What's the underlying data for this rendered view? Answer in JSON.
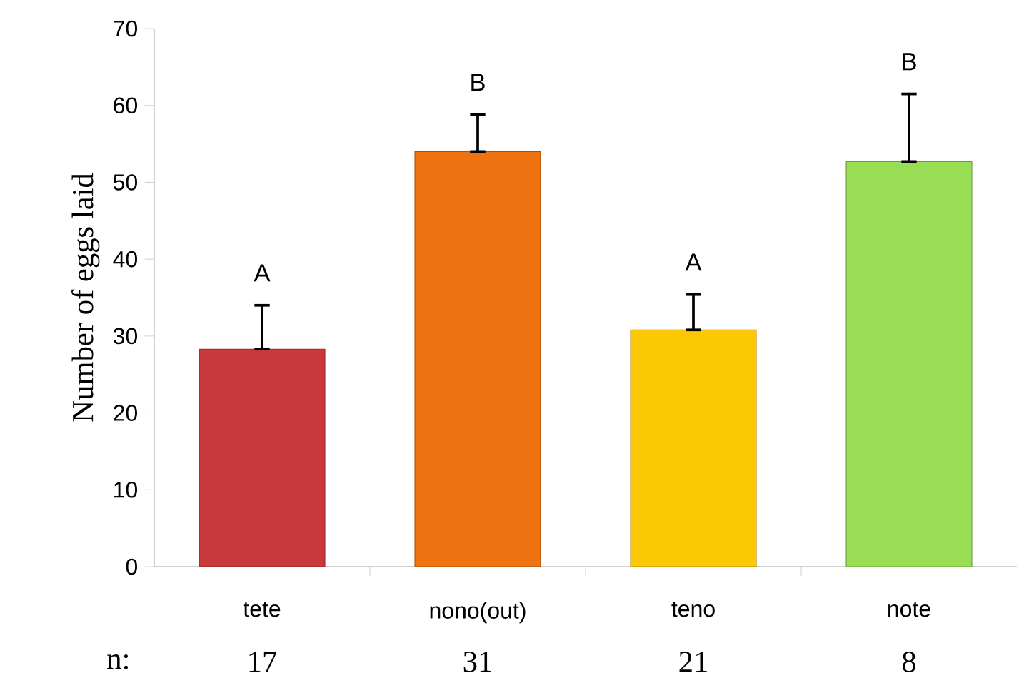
{
  "chart_data": {
    "type": "bar",
    "ylabel": "Number of eggs laid",
    "categories": [
      "tete",
      "nono(out)",
      "teno",
      "note"
    ],
    "values": [
      28.3,
      54,
      30.8,
      52.7
    ],
    "errors": [
      [
        28.3,
        34
      ],
      [
        54,
        58.8
      ],
      [
        30.8,
        35.4
      ],
      [
        52.7,
        61.5
      ]
    ],
    "colors": [
      "#c9393b",
      "#ef7411",
      "#fcc805",
      "#99dd55"
    ],
    "ylim": [
      0,
      70
    ],
    "yticks": [
      0,
      10,
      20,
      30,
      40,
      50,
      60,
      70
    ],
    "grid": false,
    "annotations": [
      "A",
      "B",
      "A",
      "B",
      "n:",
      "17",
      "31",
      "21",
      "8"
    ]
  }
}
